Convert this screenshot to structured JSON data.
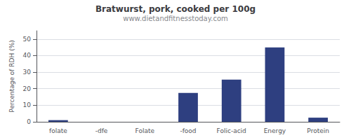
{
  "chart_data": {
    "type": "bar",
    "title": "Bratwurst, pork, cooked per 100g",
    "subtitle": "www.dietandfitnesstoday.com",
    "categories": [
      "folate",
      "-dfe",
      "Folate",
      "-food",
      "Folic-acid",
      "Energy",
      "Protein"
    ],
    "values": [
      1.0,
      0.0,
      0.0,
      17.5,
      25.5,
      45.0,
      2.5
    ],
    "color": "#2e3f80",
    "ylabel": "Percentage of RDH (%)",
    "ylim": [
      0,
      55
    ],
    "yticks": [
      0,
      10,
      20,
      30,
      40,
      50
    ],
    "grid": true
  }
}
